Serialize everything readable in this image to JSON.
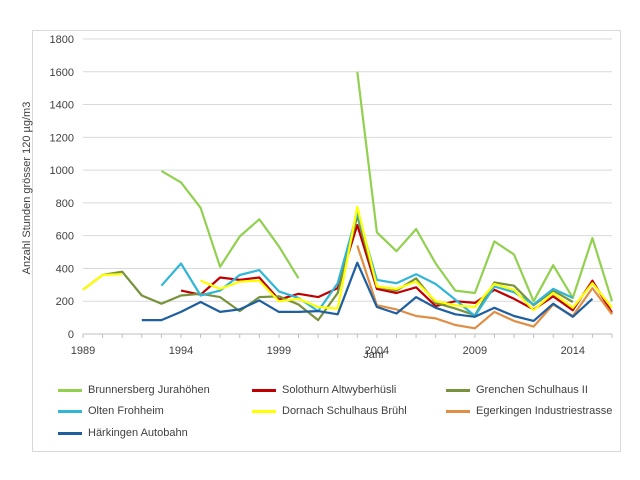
{
  "chart_data": {
    "type": "line",
    "title": "",
    "xlabel": "Jahr",
    "ylabel": "Anzahl Stunden grösser 120 µg/m3",
    "ylim": [
      0,
      1800
    ],
    "yticks": [
      0,
      200,
      400,
      600,
      800,
      1000,
      1200,
      1400,
      1600,
      1800
    ],
    "xlim": [
      1989,
      2016
    ],
    "xticks": [
      1989,
      1994,
      1999,
      2004,
      2009,
      2014
    ],
    "grid": "horizontal",
    "legend_position": "bottom",
    "series": [
      {
        "name": "Brunnersberg Jurahöhen",
        "color": "#92d050",
        "points": [
          [
            1993,
            995
          ],
          [
            1994,
            925
          ],
          [
            1995,
            770
          ],
          [
            1996,
            410
          ],
          [
            1997,
            595
          ],
          [
            1998,
            700
          ],
          [
            1999,
            535
          ],
          [
            2000,
            340
          ],
          [
            null,
            null
          ],
          [
            2003,
            1600
          ],
          [
            2004,
            620
          ],
          [
            2005,
            505
          ],
          [
            2006,
            640
          ],
          [
            2007,
            430
          ],
          [
            2008,
            265
          ],
          [
            2009,
            250
          ],
          [
            2010,
            565
          ],
          [
            2011,
            485
          ],
          [
            2012,
            200
          ],
          [
            2013,
            420
          ],
          [
            2014,
            220
          ],
          [
            2015,
            585
          ],
          [
            2016,
            200
          ]
        ]
      },
      {
        "name": "Solothurn Altwyberhüsli",
        "color": "#c00000",
        "points": [
          [
            1994,
            265
          ],
          [
            1995,
            240
          ],
          [
            1996,
            345
          ],
          [
            1997,
            330
          ],
          [
            1998,
            345
          ],
          [
            1999,
            210
          ],
          [
            2000,
            245
          ],
          [
            2001,
            225
          ],
          [
            2002,
            280
          ],
          [
            2003,
            665
          ],
          [
            2004,
            275
          ],
          [
            2005,
            250
          ],
          [
            2006,
            285
          ],
          [
            2007,
            170
          ],
          [
            2008,
            200
          ],
          [
            2009,
            190
          ],
          [
            2010,
            270
          ],
          [
            2011,
            215
          ],
          [
            2012,
            150
          ],
          [
            2013,
            230
          ],
          [
            2014,
            145
          ],
          [
            2015,
            325
          ],
          [
            2016,
            130
          ]
        ]
      },
      {
        "name": "Grenchen Schulhaus II",
        "color": "#77933c",
        "points": [
          [
            1989,
            270
          ],
          [
            1990,
            360
          ],
          [
            1991,
            380
          ],
          [
            1992,
            235
          ],
          [
            1993,
            185
          ],
          [
            1994,
            235
          ],
          [
            1995,
            245
          ],
          [
            1996,
            225
          ],
          [
            1997,
            140
          ],
          [
            1998,
            225
          ],
          [
            1999,
            230
          ],
          [
            2000,
            180
          ],
          [
            2001,
            85
          ],
          [
            2002,
            250
          ],
          [
            2003,
            720
          ],
          [
            2004,
            290
          ],
          [
            2005,
            265
          ],
          [
            2006,
            340
          ],
          [
            2007,
            190
          ],
          [
            2008,
            155
          ],
          [
            2009,
            115
          ],
          [
            2010,
            315
          ],
          [
            2011,
            295
          ],
          [
            2012,
            175
          ],
          [
            2013,
            265
          ],
          [
            2014,
            195
          ]
        ]
      },
      {
        "name": "Olten Frohheim",
        "color": "#31b6d7",
        "points": [
          [
            1993,
            295
          ],
          [
            1994,
            430
          ],
          [
            1995,
            235
          ],
          [
            1996,
            265
          ],
          [
            1997,
            360
          ],
          [
            1998,
            390
          ],
          [
            1999,
            260
          ],
          [
            2000,
            220
          ],
          [
            2001,
            140
          ],
          [
            2002,
            310
          ],
          [
            2003,
            740
          ],
          [
            2004,
            330
          ],
          [
            2005,
            310
          ],
          [
            2006,
            365
          ],
          [
            2007,
            305
          ],
          [
            2008,
            210
          ],
          [
            2009,
            110
          ],
          [
            2010,
            290
          ],
          [
            2011,
            255
          ],
          [
            2012,
            180
          ],
          [
            2013,
            275
          ],
          [
            2014,
            220
          ]
        ]
      },
      {
        "name": "Dornach Schulhaus Brühl",
        "color": "#ffff00",
        "points": [
          [
            1989,
            270
          ],
          [
            1990,
            360
          ],
          [
            1991,
            365
          ],
          [
            null,
            null
          ],
          [
            1995,
            325
          ],
          [
            1996,
            275
          ],
          [
            1997,
            320
          ],
          [
            1998,
            325
          ],
          [
            1999,
            200
          ],
          [
            2000,
            215
          ],
          [
            2001,
            165
          ],
          [
            2002,
            155
          ],
          [
            2003,
            775
          ],
          [
            2004,
            290
          ],
          [
            2005,
            275
          ],
          [
            2006,
            320
          ],
          [
            2007,
            200
          ],
          [
            2008,
            175
          ],
          [
            2009,
            165
          ],
          [
            2010,
            305
          ],
          [
            2011,
            270
          ],
          [
            2012,
            145
          ],
          [
            2013,
            250
          ],
          [
            2014,
            160
          ],
          [
            2015,
            310
          ],
          [
            2016,
            160
          ]
        ]
      },
      {
        "name": "Egerkingen Industriestrasse",
        "color": "#e08e45",
        "points": [
          [
            2003,
            540
          ],
          [
            2004,
            175
          ],
          [
            2005,
            150
          ],
          [
            2006,
            110
          ],
          [
            2007,
            95
          ],
          [
            2008,
            55
          ],
          [
            2009,
            35
          ],
          [
            2010,
            135
          ],
          [
            2011,
            80
          ],
          [
            2012,
            45
          ],
          [
            2013,
            180
          ],
          [
            2014,
            110
          ],
          [
            2015,
            280
          ],
          [
            2016,
            120
          ]
        ]
      },
      {
        "name": "Härkingen Autobahn",
        "color": "#1f5fa0",
        "points": [
          [
            1992,
            85
          ],
          [
            1993,
            85
          ],
          [
            1994,
            135
          ],
          [
            1995,
            195
          ],
          [
            1996,
            135
          ],
          [
            1997,
            150
          ],
          [
            1998,
            205
          ],
          [
            1999,
            135
          ],
          [
            2000,
            135
          ],
          [
            2001,
            140
          ],
          [
            2002,
            120
          ],
          [
            2003,
            435
          ],
          [
            2004,
            165
          ],
          [
            2005,
            125
          ],
          [
            2006,
            225
          ],
          [
            2007,
            160
          ],
          [
            2008,
            120
          ],
          [
            2009,
            105
          ],
          [
            2010,
            160
          ],
          [
            2011,
            110
          ],
          [
            2012,
            80
          ],
          [
            2013,
            185
          ],
          [
            2014,
            105
          ],
          [
            2015,
            215
          ]
        ]
      }
    ]
  }
}
